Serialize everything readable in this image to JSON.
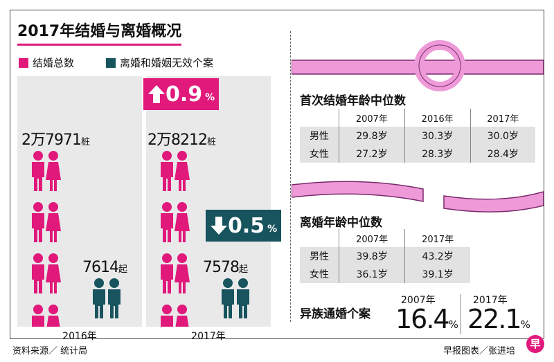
{
  "title": "2017年结婚与离婚概况",
  "legend": {
    "marriage": "结婚总数",
    "divorce": "离婚和婚姻无效个案"
  },
  "colors": {
    "marriage": "#e0197b",
    "divorce": "#17545e",
    "accent": "#e0197b"
  },
  "chart_data": [
    {
      "type": "bar",
      "title": "2017年结婚与离婚概况",
      "categories": [
        "2016年",
        "2017年"
      ],
      "series": [
        {
          "name": "结婚总数",
          "values": [
            27971,
            28212
          ]
        },
        {
          "name": "离婚和婚姻无效个案",
          "values": [
            7614,
            7578
          ]
        }
      ]
    },
    {
      "type": "table",
      "title": "首次结婚年龄中位数",
      "columns": [
        "2007年",
        "2016年",
        "2017年"
      ],
      "rows": [
        {
          "label": "男性",
          "values": [
            29.8,
            30.3,
            30.0
          ]
        },
        {
          "label": "女性",
          "values": [
            27.2,
            28.3,
            28.4
          ]
        }
      ]
    },
    {
      "type": "table",
      "title": "离婚年龄中位数",
      "columns": [
        "2007年",
        "2017年"
      ],
      "rows": [
        {
          "label": "男性",
          "values": [
            39.8,
            43.2
          ]
        },
        {
          "label": "女性",
          "values": [
            36.1,
            39.1
          ]
        }
      ]
    }
  ],
  "left": {
    "y2016": {
      "year": "2016年",
      "marriage_num": "2万7971",
      "marriage_unit": "桩",
      "divorce_num": "7614",
      "divorce_unit": "起"
    },
    "y2017": {
      "year": "2017年",
      "marriage_num": "2万8212",
      "marriage_unit": "桩",
      "divorce_num": "7578",
      "divorce_unit": "起",
      "marriage_change": "0.9",
      "divorce_change": "0.5",
      "pct": "%"
    }
  },
  "first_marriage": {
    "title": "首次结婚年龄中位数",
    "headers": [
      "2007年",
      "2016年",
      "2017年"
    ],
    "rows": [
      {
        "label": "男性",
        "cells": [
          "29.8岁",
          "30.3岁",
          "30.0岁"
        ]
      },
      {
        "label": "女性",
        "cells": [
          "27.2岁",
          "28.3岁",
          "28.4岁"
        ]
      }
    ]
  },
  "divorce_age": {
    "title": "离婚年龄中位数",
    "headers": [
      "2007年",
      "2017年"
    ],
    "rows": [
      {
        "label": "男性",
        "cells": [
          "39.8岁",
          "43.2岁"
        ]
      },
      {
        "label": "女性",
        "cells": [
          "36.1岁",
          "39.1岁"
        ]
      }
    ]
  },
  "interracial": {
    "title": "异族通婚个案",
    "a_year": "2007年",
    "a_value": "16.4",
    "b_year": "2017年",
    "b_value": "22.1",
    "pct": "%"
  },
  "footer": {
    "source": "资料来源／ 统计局",
    "credit": "早报图表／张进培",
    "logo": "早"
  }
}
